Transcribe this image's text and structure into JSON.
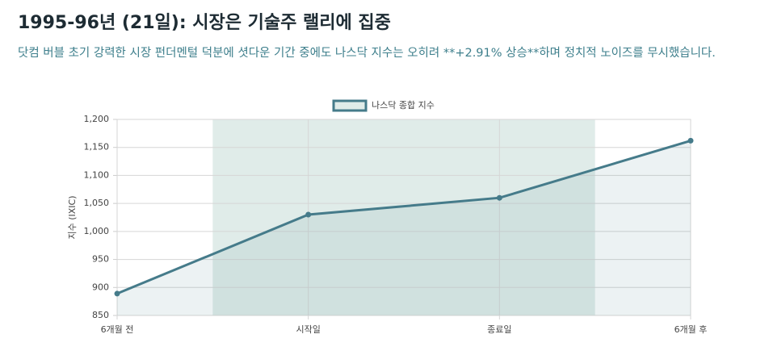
{
  "chart_data": {
    "type": "line",
    "title": "1995-96년 (21일): 시장은 기술주 랠리에 집중",
    "subtitle": "닷컴 버블 초기 강력한 시장 펀더멘털 덕분에 셧다운 기간 중에도 나스닥 지수는 오히려 **+2.91% 상승**하며 정치적 노이즈를 무시했습니다.",
    "y_label": "지수 (IXIC)",
    "categories": [
      "6개월 전",
      "시작일",
      "종료일",
      "6개월 후"
    ],
    "series": [
      {
        "name": "나스닥 종합 지수",
        "color": "#457b8a",
        "values": [
          889,
          1030,
          1060,
          1162
        ]
      }
    ],
    "ylim": [
      850,
      1200
    ],
    "yticks": [
      850,
      900,
      950,
      {
        "value": 1000,
        "label": "1,000"
      },
      {
        "value": 1050,
        "label": "1,050"
      },
      {
        "value": 1100,
        "label": "1,100"
      },
      {
        "value": 1150,
        "label": "1,150"
      },
      {
        "value": 1200,
        "label": "1,200"
      }
    ],
    "grid": true,
    "legend": "top"
  }
}
